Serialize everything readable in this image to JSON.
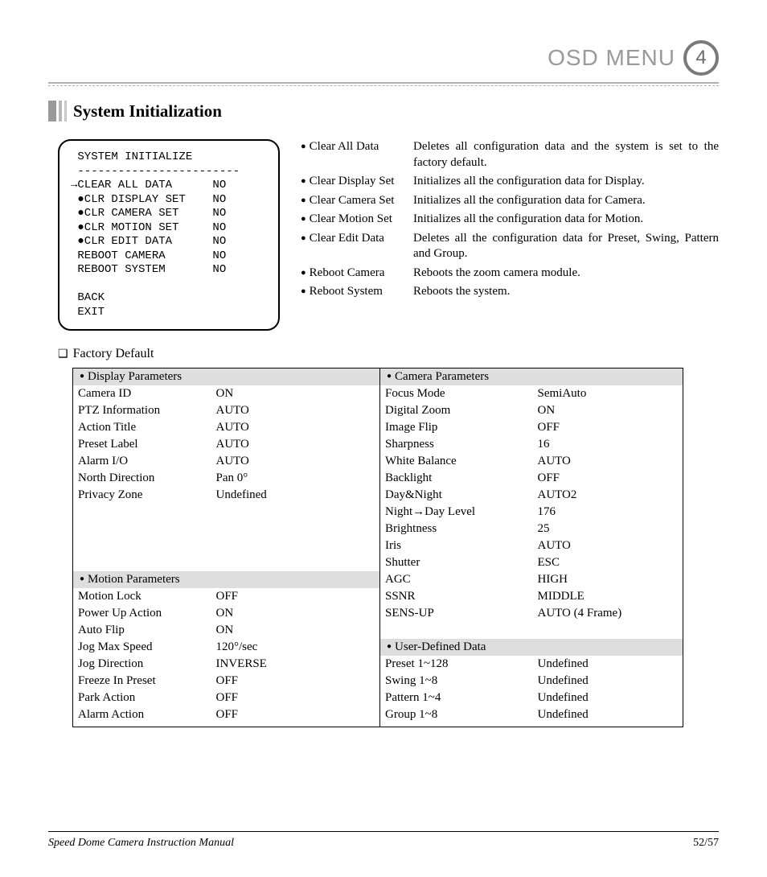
{
  "header": {
    "title": "OSD MENU",
    "chapter": "4"
  },
  "section_title": "System Initialization",
  "osd_text": " SYSTEM INITIALIZE\n ------------------------\n→CLEAR ALL DATA      NO\n ●CLR DISPLAY SET    NO\n ●CLR CAMERA SET     NO\n ●CLR MOTION SET     NO\n ●CLR EDIT DATA      NO\n REBOOT CAMERA       NO\n REBOOT SYSTEM       NO\n\n BACK\n EXIT",
  "definitions": [
    {
      "term": "Clear All Data",
      "desc": "Deletes all configuration data and the system is set to the factory default."
    },
    {
      "term": "Clear Display Set",
      "desc": "Initializes all the configuration data for Display."
    },
    {
      "term": "Clear Camera Set",
      "desc": "Initializes all the configuration data for Camera."
    },
    {
      "term": "Clear Motion Set",
      "desc": "Initializes all the configuration data for Motion."
    },
    {
      "term": "Clear Edit Data",
      "desc": "Deletes all the configuration data for Preset, Swing, Pattern and Group."
    },
    {
      "term": "Reboot Camera",
      "desc": "Reboots the zoom camera module."
    },
    {
      "term": "Reboot System",
      "desc": "Reboots the system."
    }
  ],
  "factory_heading": "Factory Default",
  "display_header": "Display Parameters",
  "display_params": [
    {
      "name": "Camera ID",
      "value": "ON"
    },
    {
      "name": "PTZ Information",
      "value": "AUTO"
    },
    {
      "name": "Action Title",
      "value": "AUTO"
    },
    {
      "name": "Preset Label",
      "value": "AUTO"
    },
    {
      "name": "Alarm I/O",
      "value": "AUTO"
    },
    {
      "name": "North Direction",
      "value": "Pan 0°"
    },
    {
      "name": "Privacy Zone",
      "value": "Undefined"
    }
  ],
  "motion_header": "Motion Parameters",
  "motion_params": [
    {
      "name": "Motion Lock",
      "value": "OFF"
    },
    {
      "name": "Power Up Action",
      "value": "ON"
    },
    {
      "name": "Auto Flip",
      "value": "ON"
    },
    {
      "name": "Jog Max Speed",
      "value": "120°/sec"
    },
    {
      "name": "Jog Direction",
      "value": "INVERSE"
    },
    {
      "name": "Freeze In Preset",
      "value": "OFF"
    },
    {
      "name": "Park Action",
      "value": "OFF"
    },
    {
      "name": "Alarm Action",
      "value": "OFF"
    }
  ],
  "camera_header": "Camera Parameters",
  "camera_params": [
    {
      "name": "Focus Mode",
      "value": "SemiAuto"
    },
    {
      "name": "Digital Zoom",
      "value": "ON"
    },
    {
      "name": "Image Flip",
      "value": "OFF"
    },
    {
      "name": "Sharpness",
      "value": "16"
    },
    {
      "name": "White Balance",
      "value": "AUTO"
    },
    {
      "name": "Backlight",
      "value": "OFF"
    },
    {
      "name": "Day&Night",
      "value": "AUTO2"
    },
    {
      "name": "Night→Day Level",
      "value": "176"
    },
    {
      "name": "Brightness",
      "value": "25"
    },
    {
      "name": "Iris",
      "value": "AUTO"
    },
    {
      "name": "Shutter",
      "value": "ESC"
    },
    {
      "name": "AGC",
      "value": "HIGH"
    },
    {
      "name": "SSNR",
      "value": "MIDDLE"
    },
    {
      "name": "SENS-UP",
      "value": "AUTO (4 Frame)"
    }
  ],
  "user_header": "User-Defined Data",
  "user_params": [
    {
      "name": "Preset 1~128",
      "value": "Undefined"
    },
    {
      "name": "Swing 1~8",
      "value": "Undefined"
    },
    {
      "name": "Pattern 1~4",
      "value": "Undefined"
    },
    {
      "name": "Group 1~8",
      "value": "Undefined"
    }
  ],
  "footer": {
    "left": "Speed Dome Camera Instruction Manual",
    "right": "52/57"
  },
  "colors": {
    "header_text": "#9a9a9a",
    "circle_border": "#7a7a7a",
    "table_header_bg": "#dedede",
    "rule": "#b0b0b0"
  },
  "typography": {
    "body_font": "Georgia",
    "mono_font": "Courier New",
    "header_font": "Century Gothic",
    "body_size_pt": 11,
    "mono_size_pt": 10,
    "header_size_pt": 21
  }
}
